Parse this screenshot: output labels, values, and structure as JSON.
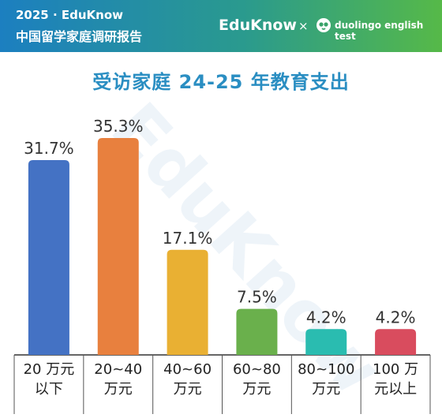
{
  "header": {
    "year_line": "2025 · EduKnow",
    "title_line": "中国留学家庭调研报告",
    "brand_left": "EduKnow",
    "separator": "×",
    "brand_right": "duolingo english test"
  },
  "watermark_text": "EduKnow",
  "chart_data": {
    "type": "bar",
    "title": "受访家庭 24-25 年教育支出",
    "categories": [
      [
        "20 万元",
        "以下"
      ],
      [
        "20~40",
        "万元"
      ],
      [
        "40~60",
        "万元"
      ],
      [
        "60~80",
        "万元"
      ],
      [
        "80~100",
        "万元"
      ],
      [
        "100 万",
        "元以上"
      ]
    ],
    "values": [
      31.7,
      35.3,
      17.1,
      7.5,
      4.2,
      4.2
    ],
    "value_labels": [
      "31.7%",
      "35.3%",
      "17.1%",
      "7.5%",
      "4.2%",
      "4.2%"
    ],
    "colors": [
      "#4472c4",
      "#e8803e",
      "#e9b033",
      "#6ab04c",
      "#2abcb0",
      "#d94c5e"
    ],
    "unit": "%",
    "ylim": [
      0,
      35.3
    ],
    "grid": false,
    "legend": "none"
  }
}
